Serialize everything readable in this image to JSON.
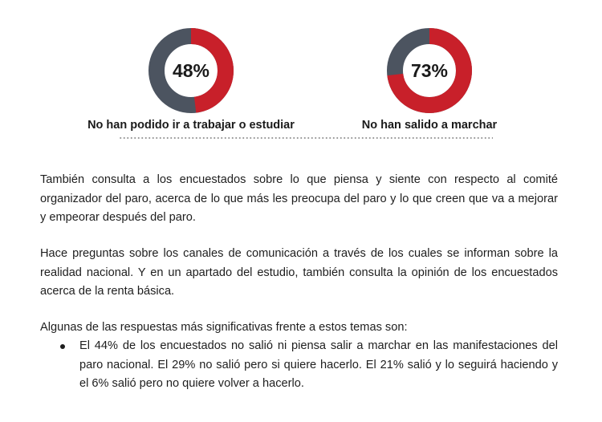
{
  "charts": [
    {
      "value": 48,
      "display": "48%",
      "label": "No han podido ir a trabajar o estudiar",
      "colors": {
        "filled": "#c8202a",
        "rest": "#4c5460"
      }
    },
    {
      "value": 73,
      "display": "73%",
      "label": "No han salido a marchar",
      "colors": {
        "filled": "#c8202a",
        "rest": "#4c5460"
      }
    }
  ],
  "chart_data": [
    {
      "type": "pie",
      "values": [
        48,
        52
      ],
      "value_label": "48%",
      "caption": "No han podido ir a trabajar o estudiar"
    },
    {
      "type": "pie",
      "values": [
        73,
        27
      ],
      "value_label": "73%",
      "caption": "No han salido a marchar"
    }
  ],
  "paragraphs": [
    "También consulta a los encuestados sobre lo que piensa y siente con respecto al comité organizador del paro, acerca de lo que más les preocupa del paro y lo que creen que va a mejorar y empeorar después del paro.",
    "Hace preguntas sobre los canales de comunicación a través de los cuales se informan sobre la realidad nacional. Y en un apartado del estudio, también consulta la opinión de los encuestados acerca de la renta básica.",
    "Algunas de las respuestas más significativas frente a estos temas son:"
  ],
  "bullets": [
    "El 44% de los encuestados no salió ni piensa salir a marchar en las manifestaciones del paro nacional. El 29% no salió pero si quiere hacerlo. El 21% salió y lo seguirá haciendo y el 6% salió pero no quiere volver a hacerlo."
  ]
}
